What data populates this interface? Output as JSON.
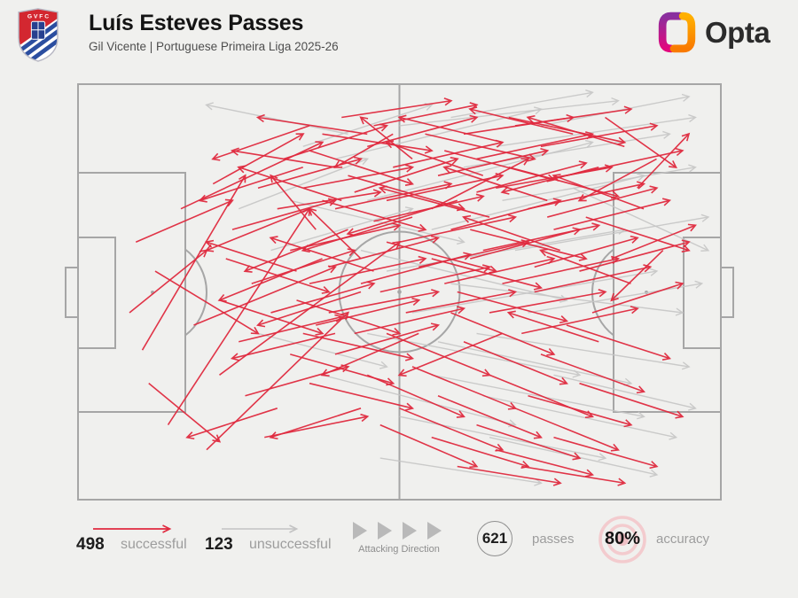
{
  "header": {
    "title": "Luís Esteves Passes",
    "subtitle": "Gil Vicente | Portuguese Primeira Liga 2025-26",
    "crest_letters": "G V F C"
  },
  "brand": {
    "name": "Opta"
  },
  "legend": {
    "successful": {
      "count": "498",
      "label": "successful"
    },
    "unsuccessful": {
      "count": "123",
      "label": "unsuccessful"
    },
    "attacking_direction_label": "Attacking Direction",
    "passes": {
      "count": "621",
      "label": "passes"
    },
    "accuracy": {
      "value": "80%",
      "label": "accuracy"
    }
  },
  "colors": {
    "successful": "#e02a3f",
    "unsuccessful": "#c6c6c6",
    "pitch_line": "#a6a6a6",
    "background": "#f0f0ee",
    "target_ring": "#f3cbce"
  },
  "chart_data": {
    "type": "scatter",
    "subtype": "pass-map-arrows",
    "title": "Luís Esteves Passes",
    "coordinate_space": {
      "x_range": [
        0,
        100
      ],
      "y_range": [
        0,
        100
      ],
      "note": "percent of pitch, attacking left to right, y top to bottom"
    },
    "totals": {
      "successful": 498,
      "unsuccessful": 123,
      "total_passes": 621,
      "accuracy_pct": 80
    },
    "legend_position": "bottom",
    "successful_passes": [
      [
        14,
        82,
        36,
        30
      ],
      [
        10,
        64,
        26,
        22
      ],
      [
        8,
        55,
        20,
        40
      ],
      [
        12,
        45,
        28,
        60
      ],
      [
        20,
        88,
        42,
        55
      ],
      [
        16,
        30,
        38,
        14
      ],
      [
        9,
        38,
        24,
        28
      ],
      [
        22,
        70,
        50,
        38
      ],
      [
        18,
        58,
        40,
        44
      ],
      [
        11,
        72,
        22,
        86
      ],
      [
        32,
        18,
        48,
        10
      ],
      [
        35,
        25,
        52,
        20
      ],
      [
        38,
        12,
        55,
        16
      ],
      [
        40,
        30,
        58,
        24
      ],
      [
        33,
        40,
        50,
        34
      ],
      [
        36,
        48,
        54,
        42
      ],
      [
        42,
        22,
        60,
        30
      ],
      [
        45,
        15,
        62,
        8
      ],
      [
        48,
        28,
        66,
        22
      ],
      [
        50,
        38,
        68,
        32
      ],
      [
        37,
        35,
        30,
        22
      ],
      [
        44,
        42,
        36,
        30
      ],
      [
        52,
        18,
        44,
        8
      ],
      [
        55,
        30,
        70,
        18
      ],
      [
        47,
        50,
        64,
        44
      ],
      [
        39,
        55,
        56,
        50
      ],
      [
        41,
        8,
        58,
        4
      ],
      [
        49,
        12,
        40,
        20
      ],
      [
        53,
        44,
        70,
        38
      ],
      [
        46,
        33,
        63,
        27
      ],
      [
        34,
        52,
        50,
        60
      ],
      [
        43,
        60,
        60,
        54
      ],
      [
        51,
        55,
        68,
        50
      ],
      [
        56,
        22,
        73,
        16
      ],
      [
        58,
        35,
        75,
        28
      ],
      [
        60,
        12,
        77,
        8
      ],
      [
        57,
        48,
        74,
        42
      ],
      [
        59,
        28,
        42,
        36
      ],
      [
        35,
        60,
        52,
        66
      ],
      [
        31,
        30,
        47,
        26
      ],
      [
        62,
        18,
        80,
        12
      ],
      [
        65,
        25,
        83,
        20
      ],
      [
        68,
        10,
        86,
        6
      ],
      [
        70,
        30,
        88,
        24
      ],
      [
        63,
        40,
        81,
        34
      ],
      [
        66,
        48,
        84,
        42
      ],
      [
        72,
        15,
        90,
        10
      ],
      [
        74,
        35,
        92,
        28
      ],
      [
        76,
        22,
        94,
        16
      ],
      [
        78,
        45,
        95,
        38
      ],
      [
        64,
        55,
        82,
        50
      ],
      [
        67,
        8,
        85,
        14
      ],
      [
        71,
        50,
        89,
        44
      ],
      [
        73,
        28,
        57,
        20
      ],
      [
        75,
        40,
        60,
        32
      ],
      [
        77,
        12,
        61,
        6
      ],
      [
        79,
        32,
        95,
        40
      ],
      [
        81,
        20,
        66,
        26
      ],
      [
        83,
        42,
        96,
        34
      ],
      [
        69,
        60,
        87,
        54
      ],
      [
        85,
        15,
        70,
        8
      ],
      [
        61,
        35,
        79,
        42
      ],
      [
        88,
        30,
        74,
        22
      ],
      [
        90,
        18,
        78,
        28
      ],
      [
        63,
        22,
        48,
        14
      ],
      [
        80,
        55,
        94,
        48
      ],
      [
        86,
        48,
        72,
        40
      ],
      [
        91,
        40,
        83,
        52
      ],
      [
        82,
        8,
        93,
        20
      ],
      [
        87,
        25,
        95,
        12
      ],
      [
        48,
        60,
        64,
        70
      ],
      [
        52,
        68,
        68,
        78
      ],
      [
        56,
        75,
        72,
        85
      ],
      [
        60,
        62,
        76,
        72
      ],
      [
        64,
        70,
        80,
        80
      ],
      [
        68,
        78,
        84,
        88
      ],
      [
        55,
        85,
        70,
        92
      ],
      [
        45,
        70,
        60,
        80
      ],
      [
        50,
        78,
        66,
        88
      ],
      [
        58,
        55,
        74,
        65
      ],
      [
        62,
        82,
        78,
        90
      ],
      [
        66,
        60,
        50,
        70
      ],
      [
        70,
        75,
        86,
        82
      ],
      [
        72,
        65,
        88,
        74
      ],
      [
        74,
        85,
        90,
        92
      ],
      [
        53,
        60,
        38,
        70
      ],
      [
        47,
        82,
        62,
        92
      ],
      [
        65,
        88,
        80,
        94
      ],
      [
        76,
        58,
        92,
        66
      ],
      [
        78,
        72,
        94,
        80
      ],
      [
        40,
        65,
        56,
        58
      ],
      [
        44,
        78,
        30,
        85
      ],
      [
        59,
        92,
        75,
        96
      ],
      [
        69,
        92,
        85,
        96
      ],
      [
        81,
        62,
        67,
        55
      ],
      [
        24,
        35,
        40,
        28
      ],
      [
        27,
        48,
        43,
        40
      ],
      [
        30,
        55,
        46,
        48
      ],
      [
        25,
        62,
        41,
        56
      ],
      [
        28,
        25,
        44,
        18
      ],
      [
        22,
        52,
        38,
        60
      ],
      [
        33,
        65,
        49,
        72
      ],
      [
        26,
        75,
        42,
        68
      ],
      [
        36,
        72,
        52,
        78
      ],
      [
        29,
        85,
        45,
        80
      ],
      [
        21,
        24,
        35,
        12
      ],
      [
        34,
        45,
        20,
        38
      ],
      [
        23,
        42,
        39,
        50
      ],
      [
        37,
        58,
        53,
        52
      ],
      [
        31,
        78,
        17,
        85
      ],
      [
        38,
        42,
        22,
        52
      ],
      [
        42,
        35,
        26,
        45
      ],
      [
        36,
        30,
        20,
        40
      ],
      [
        44,
        50,
        28,
        58
      ],
      [
        40,
        60,
        24,
        66
      ],
      [
        35,
        20,
        19,
        28
      ],
      [
        46,
        45,
        30,
        37
      ],
      [
        41,
        28,
        25,
        20
      ],
      [
        36,
        16,
        52,
        24
      ],
      [
        54,
        12,
        71,
        18
      ],
      [
        43,
        26,
        59,
        18
      ],
      [
        61,
        42,
        78,
        35
      ],
      [
        49,
        20,
        66,
        14
      ],
      [
        57,
        16,
        74,
        23
      ],
      [
        64,
        32,
        47,
        25
      ],
      [
        39,
        44,
        56,
        37
      ],
      [
        67,
        20,
        84,
        27
      ],
      [
        52,
        32,
        35,
        40
      ],
      [
        46,
        10,
        62,
        5
      ],
      [
        59,
        50,
        76,
        57
      ],
      [
        71,
        44,
        87,
        37
      ],
      [
        38,
        28,
        54,
        35
      ],
      [
        62,
        26,
        79,
        19
      ],
      [
        48,
        38,
        65,
        45
      ],
      [
        55,
        42,
        72,
        49
      ],
      [
        66,
        14,
        50,
        8
      ],
      [
        73,
        32,
        90,
        25
      ],
      [
        44,
        48,
        61,
        41
      ],
      [
        45,
        12,
        28,
        8
      ],
      [
        40,
        20,
        24,
        16
      ],
      [
        36,
        10,
        21,
        18
      ]
    ],
    "unsuccessful_passes": [
      [
        40,
        18,
        72,
        6
      ],
      [
        45,
        28,
        80,
        14
      ],
      [
        50,
        10,
        84,
        4
      ],
      [
        55,
        35,
        88,
        22
      ],
      [
        60,
        20,
        92,
        12
      ],
      [
        48,
        45,
        85,
        35
      ],
      [
        65,
        15,
        96,
        8
      ],
      [
        52,
        55,
        90,
        45
      ],
      [
        58,
        48,
        94,
        55
      ],
      [
        62,
        60,
        95,
        68
      ],
      [
        55,
        70,
        88,
        80
      ],
      [
        50,
        80,
        82,
        90
      ],
      [
        45,
        60,
        78,
        70
      ],
      [
        68,
        40,
        98,
        32
      ],
      [
        70,
        55,
        97,
        48
      ],
      [
        63,
        75,
        93,
        85
      ],
      [
        35,
        15,
        55,
        5
      ],
      [
        30,
        40,
        52,
        30
      ],
      [
        25,
        30,
        45,
        18
      ],
      [
        66,
        28,
        96,
        20
      ],
      [
        72,
        10,
        95,
        3
      ],
      [
        58,
        8,
        80,
        2
      ],
      [
        44,
        40,
        76,
        52
      ],
      [
        38,
        70,
        68,
        82
      ],
      [
        56,
        62,
        86,
        72
      ],
      [
        74,
        70,
        96,
        78
      ],
      [
        77,
        25,
        98,
        40
      ],
      [
        42,
        12,
        20,
        5
      ],
      [
        28,
        60,
        48,
        68
      ],
      [
        64,
        85,
        90,
        94
      ],
      [
        47,
        90,
        72,
        96
      ],
      [
        33,
        28,
        60,
        38
      ]
    ]
  }
}
